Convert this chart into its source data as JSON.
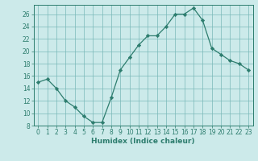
{
  "x": [
    0,
    1,
    2,
    3,
    4,
    5,
    6,
    7,
    8,
    9,
    10,
    11,
    12,
    13,
    14,
    15,
    16,
    17,
    18,
    19,
    20,
    21,
    22,
    23
  ],
  "y": [
    15,
    15.5,
    14,
    12,
    11,
    9.5,
    8.5,
    8.5,
    12.5,
    17,
    19,
    21,
    22.5,
    22.5,
    24,
    26,
    26,
    27,
    25,
    20.5,
    19.5,
    18.5,
    18,
    17
  ],
  "line_color": "#2d7d6e",
  "marker": "D",
  "marker_size": 2.2,
  "bg_color": "#cceaea",
  "grid_color": "#7ab8b8",
  "xlabel": "Humidex (Indice chaleur)",
  "ylim": [
    8,
    27.5
  ],
  "xlim": [
    -0.5,
    23.5
  ],
  "yticks": [
    8,
    10,
    12,
    14,
    16,
    18,
    20,
    22,
    24,
    26
  ],
  "xticks": [
    0,
    1,
    2,
    3,
    4,
    5,
    6,
    7,
    8,
    9,
    10,
    11,
    12,
    13,
    14,
    15,
    16,
    17,
    18,
    19,
    20,
    21,
    22,
    23
  ],
  "axis_color": "#2d7d6e",
  "label_fontsize": 6.5,
  "tick_fontsize": 5.5
}
